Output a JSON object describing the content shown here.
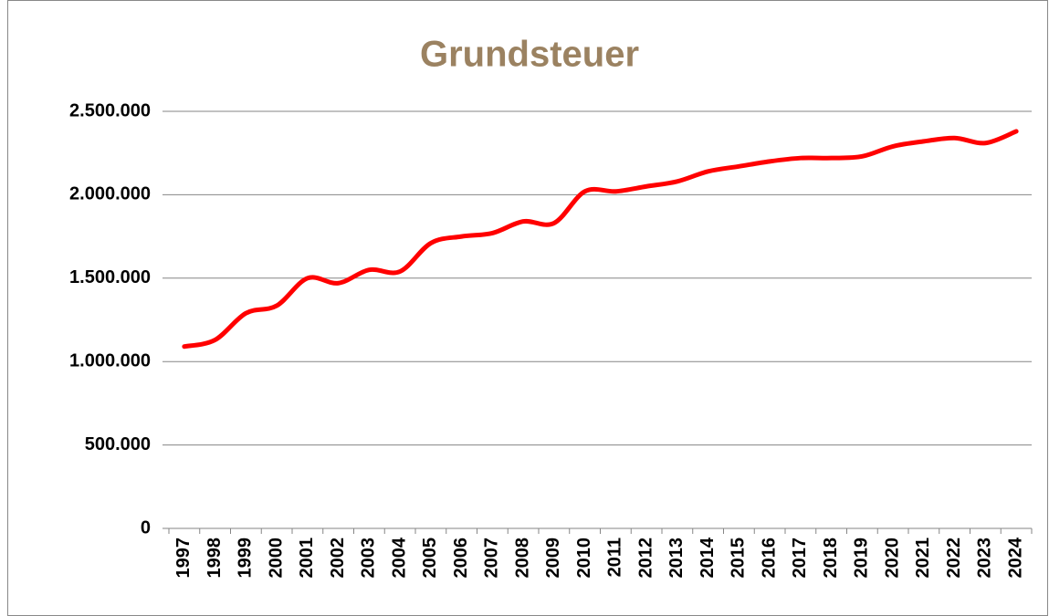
{
  "chart_data": {
    "type": "line",
    "title": "Grundsteuer",
    "categories": [
      "1997",
      "1998",
      "1999",
      "2000",
      "2001",
      "2002",
      "2003",
      "2004",
      "2005",
      "2006",
      "2007",
      "2008",
      "2009",
      "2010",
      "2011",
      "2012",
      "2013",
      "2014",
      "2015",
      "2016",
      "2017",
      "2018",
      "2019",
      "2020",
      "2021",
      "2022",
      "2023",
      "2024"
    ],
    "series": [
      {
        "name": "Grundsteuer",
        "color": "#ff0000",
        "values": [
          1090000,
          1130000,
          1290000,
          1335000,
          1500000,
          1470000,
          1550000,
          1540000,
          1710000,
          1750000,
          1770000,
          1840000,
          1830000,
          2020000,
          2020000,
          2050000,
          2080000,
          2140000,
          2170000,
          2200000,
          2220000,
          2220000,
          2230000,
          2290000,
          2320000,
          2340000,
          2310000,
          2380000
        ]
      }
    ],
    "ylim": [
      0,
      2500000
    ],
    "yticks": [
      0,
      {
        "value": 500000,
        "label": "500.000"
      },
      {
        "value": 1000000,
        "label": "1.000.000"
      },
      {
        "value": 1500000,
        "label": "1.500.000"
      },
      {
        "value": 2000000,
        "label": "2.000.000"
      },
      {
        "value": 2500000,
        "label": "2.500.000"
      }
    ],
    "grid": true
  }
}
